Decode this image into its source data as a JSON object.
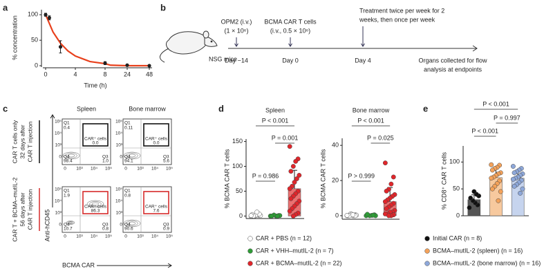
{
  "a": {
    "label": "a",
    "ylabel": "% concentration",
    "xlabel": "Time (h)",
    "x": [
      0,
      0.5,
      2,
      8,
      24,
      48
    ],
    "values": [
      100,
      94,
      37,
      5,
      1,
      0
    ],
    "errors": [
      3,
      4,
      12,
      3,
      1,
      0
    ],
    "color": "#222",
    "fit": {
      "x": [
        0,
        1,
        2,
        3,
        4,
        6,
        8,
        12,
        24,
        48
      ],
      "values": [
        100,
        66,
        44,
        29,
        19,
        8,
        4,
        1,
        0,
        0
      ],
      "color": "#e8401c"
    },
    "xticks": [
      0,
      4,
      8,
      24,
      48
    ],
    "ylim": [
      0,
      110
    ],
    "yticks": [
      0,
      50,
      100
    ]
  },
  "b": {
    "label": "b",
    "mouse": "NSG mice",
    "events": [
      {
        "text": [
          "OPM2 (i.v.)",
          "(1 × 10⁶)"
        ],
        "day": "Day −14"
      },
      {
        "text": [
          "BCMA CAR T cells",
          "(i.v., 0.5 × 10⁶)"
        ],
        "day": "Day 0"
      },
      {
        "text": [
          "Treatment twice per week for 2",
          "weeks, then once per week"
        ],
        "day": "Day 4"
      }
    ],
    "endpoint": [
      "Organs collected for flow",
      "analysis at endpoints"
    ]
  },
  "c": {
    "label": "c",
    "columns": [
      "Spleen",
      "Bone marrow"
    ],
    "rows": [
      {
        "lines": [
          "CAR T cells only",
          "32 days after",
          "CAR T injection"
        ],
        "color": "#111"
      },
      {
        "lines": [
          "CAR T + BCMA–mutIL-2",
          "56 days after",
          "CAR T injection"
        ],
        "color": "#d62a2a"
      }
    ],
    "yaxis": "Anti-hCD45",
    "xaxis": "BCMA CAR",
    "yticks": [
      "10⁵",
      "10⁴",
      "10³",
      "0"
    ],
    "xticks": [
      "0",
      "10³",
      "10⁴",
      "10⁵"
    ],
    "quadrants": [
      "Q1",
      "Q4",
      "Q3"
    ],
    "gate_label": "CAR⁺ cells",
    "plots": [
      {
        "q1": "0.4",
        "car": "0.0",
        "q4": "98.4",
        "q3": "1.0"
      },
      {
        "q1": "0.11",
        "car": "0.0",
        "q4": "94.1",
        "q3": "5.6"
      },
      {
        "q1": "1.9",
        "car": "86.3",
        "q4": "10.7",
        "q3": "0.8"
      },
      {
        "q1": "0.8",
        "car": "7.6",
        "q4": "90.6",
        "q3": "0.9"
      }
    ]
  },
  "d": {
    "label": "d",
    "charts": [
      {
        "title": "Spleen",
        "ylabel": "% BCMA CAR T cells",
        "ylim": [
          -5,
          155
        ],
        "yticks": [
          0,
          50,
          100,
          150
        ],
        "groups": [
          {
            "values": [
              0,
              1,
              2,
              0,
              3,
              1,
              5,
              2,
              0,
              1,
              4,
              8
            ],
            "mean": 2,
            "err": 2
          },
          {
            "values": [
              0,
              1,
              0,
              2,
              0,
              1,
              0
            ],
            "mean": 1,
            "err": 1
          },
          {
            "values": [
              140,
              115,
              110,
              100,
              90,
              82,
              75,
              68,
              60,
              55,
              50,
              45,
              40,
              35,
              30,
              25,
              20,
              15,
              10,
              6,
              3,
              0
            ],
            "mean": 55,
            "err": 37
          }
        ],
        "pvalues": [
          "P = 0.986",
          "P = 0.001",
          "P < 0.001"
        ]
      },
      {
        "title": "Bone marrow",
        "ylabel": "% BCMA CAR T cells",
        "ylim": [
          -2,
          44
        ],
        "yticks": [
          0,
          20,
          40
        ],
        "groups": [
          {
            "values": [
              0,
              0.5,
              0,
              1,
              0,
              0.3,
              0,
              0.8,
              0,
              0.2,
              0,
              0.5
            ],
            "mean": 0.3,
            "err": 0.3
          },
          {
            "values": [
              0,
              0.5,
              0.2,
              0,
              0.8,
              0,
              0.3
            ],
            "mean": 0.3,
            "err": 0.3
          },
          {
            "values": [
              30,
              22,
              18,
              15,
              14,
              12,
              11,
              10,
              9,
              8,
              7,
              6,
              5,
              4,
              3,
              2,
              2,
              1,
              1,
              0.5,
              0,
              0
            ],
            "mean": 8,
            "err": 8
          }
        ],
        "pvalues": [
          "P > 0.999",
          "P = 0.025",
          "P < 0.001"
        ]
      }
    ],
    "series": [
      {
        "name": "CAR + PBS (n = 12)",
        "color": "#ffffff",
        "bar_color": "#ffffff"
      },
      {
        "name": "CAR + VHH–mutIL-2 (n = 7)",
        "color": "#2e9b36",
        "bar_color": "#8fd08f"
      },
      {
        "name": "CAR + BCMA–mutIL-2 (n = 22)",
        "color": "#e0262b",
        "bar_color": "#ec7070"
      }
    ]
  },
  "e": {
    "label": "e",
    "ylabel": "% CD8⁺ CAR T cells",
    "ylim": [
      0,
      130
    ],
    "yticks": [
      0,
      50,
      100
    ],
    "groups": [
      {
        "values": [
          15,
          20,
          24,
          28,
          33,
          37,
          40,
          45
        ],
        "mean": 30,
        "err": 9
      },
      {
        "values": [
          95,
          94,
          90,
          88,
          85,
          80,
          78,
          75,
          72,
          70,
          65,
          60,
          55,
          50,
          45,
          28
        ],
        "mean": 71,
        "err": 18
      },
      {
        "values": [
          92,
          88,
          85,
          82,
          80,
          78,
          75,
          72,
          70,
          68,
          66,
          62,
          58,
          55,
          50,
          42
        ],
        "mean": 70,
        "err": 14
      }
    ],
    "pvalues": [
      "P < 0.001",
      "P = 0.997",
      "P < 0.001"
    ],
    "series": [
      {
        "name": "Initial CAR (n = 8)",
        "color": "#111111",
        "bar_color": "#555555"
      },
      {
        "name": "BCMA–mutIL-2 (spleen) (n = 16)",
        "color": "#f4a25a",
        "bar_color": "#f7c99e"
      },
      {
        "name": "BCMA–mutIL-2 (bone marrow) (n = 16)",
        "color": "#8ea8da",
        "bar_color": "#c6d4ee"
      }
    ]
  }
}
